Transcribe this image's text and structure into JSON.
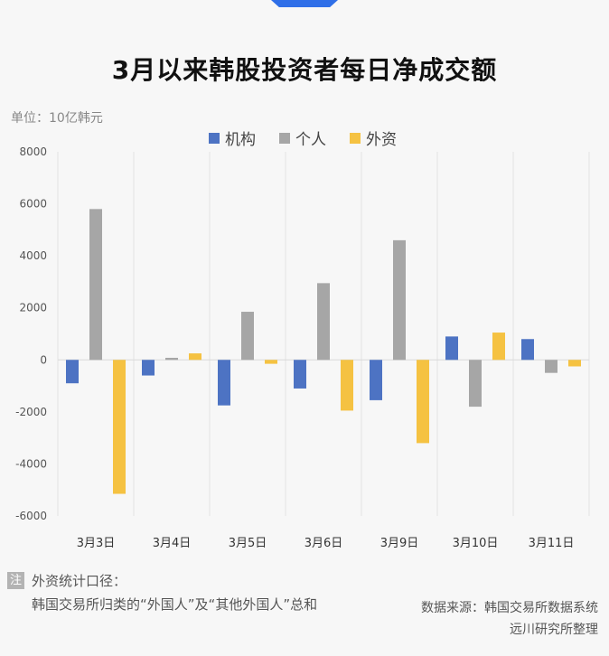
{
  "title": "3月以来韩股投资者每日净成交额",
  "unit": "单位：10亿韩元",
  "note": {
    "badge": "注",
    "heading": "外资统计口径：",
    "body": "韩国交易所归类的“外国人”及“其他外国人”总和"
  },
  "source": {
    "line1": "数据来源：韩国交易所数据系统",
    "line2": "远川研究所整理"
  },
  "colors": {
    "accent_tab": "#2f6fe8",
    "institution": "#4d73c3",
    "individual": "#a6a6a6",
    "foreign": "#f5c242"
  },
  "chart_data": {
    "type": "bar",
    "categories": [
      "3月3日",
      "3月4日",
      "3月5日",
      "3月6日",
      "3月9日",
      "3月10日",
      "3月11日"
    ],
    "series": [
      {
        "name": "机构",
        "color": "#4d73c3",
        "values": [
          -900,
          -600,
          -1750,
          -1100,
          -1550,
          900,
          800
        ]
      },
      {
        "name": "个人",
        "color": "#a6a6a6",
        "values": [
          5800,
          80,
          1850,
          2950,
          4600,
          -1800,
          -500
        ]
      },
      {
        "name": "外资",
        "color": "#f5c242",
        "values": [
          -5150,
          250,
          -150,
          -1950,
          -3200,
          1050,
          -250
        ]
      }
    ],
    "ylim": [
      -6000,
      8000
    ],
    "yticks": [
      -6000,
      -4000,
      -2000,
      0,
      2000,
      4000,
      6000,
      8000
    ],
    "legend_position": "top-center",
    "grid": "vertical"
  }
}
